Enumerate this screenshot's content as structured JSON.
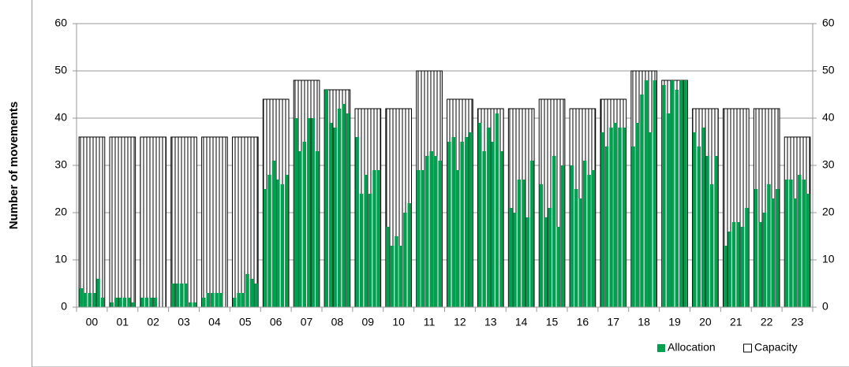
{
  "chart_data": {
    "type": "bar",
    "y_label": "Number of movements",
    "categories": [
      "00",
      "01",
      "02",
      "03",
      "04",
      "05",
      "06",
      "07",
      "08",
      "09",
      "10",
      "11",
      "12",
      "13",
      "14",
      "15",
      "16",
      "17",
      "18",
      "19",
      "20",
      "21",
      "22",
      "23"
    ],
    "series": [
      {
        "name": "Allocation",
        "color": "#00a050",
        "values": [
          [
            4,
            3,
            3,
            3,
            6,
            2
          ],
          [
            1,
            2,
            2,
            2,
            2,
            1
          ],
          [
            2,
            2,
            2,
            2,
            0,
            0
          ],
          [
            5,
            5,
            5,
            5,
            1,
            1
          ],
          [
            2,
            3,
            3,
            3,
            3,
            0
          ],
          [
            2,
            3,
            3,
            7,
            6,
            5
          ],
          [
            25,
            28,
            31,
            27,
            26,
            28
          ],
          [
            40,
            33,
            35,
            40,
            40,
            33
          ],
          [
            46,
            39,
            38,
            42,
            43,
            41
          ],
          [
            36,
            24,
            28,
            24,
            29,
            29
          ],
          [
            17,
            13,
            15,
            13,
            20,
            22
          ],
          [
            29,
            29,
            32,
            33,
            32,
            31
          ],
          [
            35,
            36,
            29,
            35,
            36,
            37
          ],
          [
            39,
            33,
            38,
            35,
            41,
            33
          ],
          [
            21,
            20,
            27,
            27,
            19,
            31
          ],
          [
            26,
            19,
            21,
            32,
            17,
            30
          ],
          [
            30,
            25,
            23,
            31,
            28,
            29
          ],
          [
            37,
            34,
            38,
            39,
            38,
            38
          ],
          [
            34,
            39,
            45,
            48,
            37,
            48
          ],
          [
            47,
            41,
            48,
            46,
            48,
            48
          ],
          [
            37,
            34,
            38,
            32,
            26,
            32
          ],
          [
            13,
            16,
            18,
            18,
            17,
            21
          ],
          [
            25,
            18,
            20,
            26,
            23,
            25
          ],
          [
            27,
            27,
            23,
            28,
            27,
            24
          ]
        ]
      },
      {
        "name": "Capacity",
        "color": "#ffffff",
        "values": [
          36,
          36,
          36,
          36,
          36,
          36,
          44,
          48,
          46,
          42,
          42,
          50,
          44,
          42,
          42,
          44,
          42,
          44,
          50,
          48,
          42,
          42,
          42,
          36
        ]
      }
    ],
    "ylim": [
      0,
      60
    ],
    "yticks": [
      0,
      10,
      20,
      30,
      40,
      50,
      60
    ],
    "y2lim": [
      0,
      60
    ],
    "y2ticks": [
      0,
      10,
      20,
      30,
      40,
      50,
      60
    ],
    "grid": true,
    "legend": "bottom-right"
  }
}
